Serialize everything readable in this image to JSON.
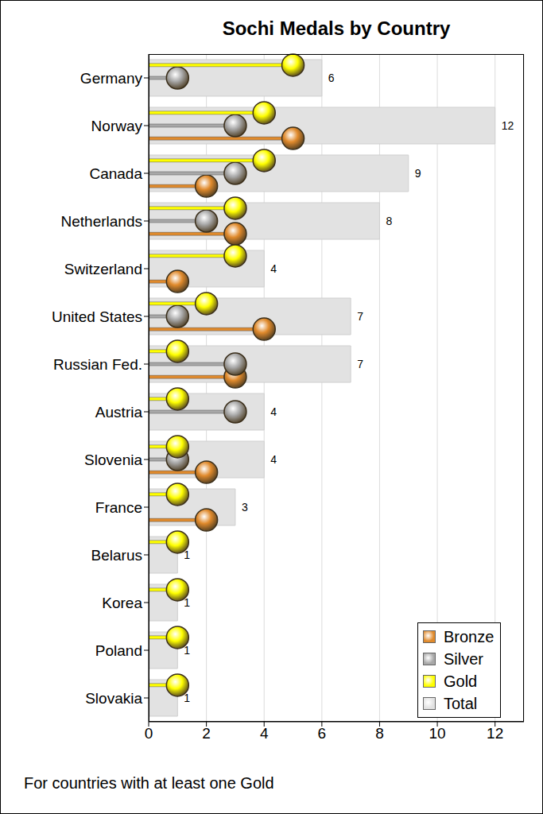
{
  "chart_data": {
    "type": "bar",
    "title": "Sochi Medals by Country",
    "footnote": "For countries with at least one Gold",
    "orientation": "horizontal",
    "categories": [
      "Germany",
      "Norway",
      "Canada",
      "Netherlands",
      "Switzerland",
      "United States",
      "Russian Fed.",
      "Austria",
      "Slovenia",
      "France",
      "Belarus",
      "Korea",
      "Poland",
      "Slovakia"
    ],
    "series": [
      {
        "name": "Bronze",
        "type": "lollipop",
        "marker": "circle",
        "color": "#e08a2c",
        "values": [
          0,
          5,
          2,
          3,
          1,
          4,
          3,
          0,
          2,
          2,
          0,
          0,
          0,
          0
        ]
      },
      {
        "name": "Silver",
        "type": "lollipop",
        "marker": "circle",
        "color": "#a8a8a8",
        "values": [
          1,
          3,
          3,
          2,
          0,
          1,
          3,
          3,
          1,
          0,
          0,
          0,
          0,
          0
        ]
      },
      {
        "name": "Gold",
        "type": "lollipop",
        "marker": "circle",
        "color": "#ffff00",
        "values": [
          5,
          4,
          4,
          3,
          3,
          2,
          1,
          1,
          1,
          1,
          1,
          1,
          1,
          1
        ]
      },
      {
        "name": "Total",
        "type": "bar",
        "color": "#e2e2e2",
        "values": [
          6,
          12,
          9,
          8,
          4,
          7,
          7,
          4,
          4,
          3,
          1,
          1,
          1,
          1
        ]
      }
    ],
    "xlim": [
      0,
      13
    ],
    "xticks": [
      0,
      2,
      4,
      6,
      8,
      10,
      12
    ],
    "grid": true,
    "legend": "lower right",
    "data_labels": true
  }
}
